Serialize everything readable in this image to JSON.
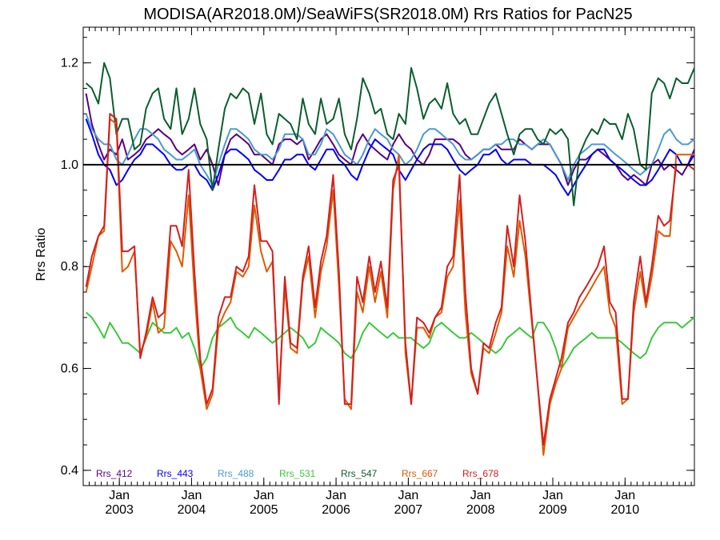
{
  "chart_data": {
    "type": "line",
    "title": "MODISA(AR2018.0M)/SeaWiFS(SR2018.0M)  Rrs Ratios for PacN25",
    "ylabel": "Rrs Ratio",
    "xlabel": "",
    "ylim": [
      0.37,
      1.27
    ],
    "yticks": [
      0.4,
      0.6,
      0.8,
      1.0,
      1.2
    ],
    "ytick_labels": [
      "0.4",
      "0.6",
      "0.8",
      "1.0",
      "1.2"
    ],
    "xlim": [
      2002.5,
      2010.96
    ],
    "xticks": [
      2003.0,
      2004.0,
      2005.0,
      2006.0,
      2007.0,
      2008.0,
      2009.0,
      2010.0
    ],
    "xtick_labels": [
      {
        "top": "Jan",
        "bottom": "2003"
      },
      {
        "top": "Jan",
        "bottom": "2004"
      },
      {
        "top": "Jan",
        "bottom": "2005"
      },
      {
        "top": "Jan",
        "bottom": "2006"
      },
      {
        "top": "Jan",
        "bottom": "2007"
      },
      {
        "top": "Jan",
        "bottom": "2008"
      },
      {
        "top": "Jan",
        "bottom": "2009"
      },
      {
        "top": "Jan",
        "bottom": "2010"
      }
    ],
    "reference_line": 1.0,
    "grid": false,
    "legend_position": "bottom-left",
    "x": [
      2002.54,
      2002.62,
      2002.71,
      2002.79,
      2002.87,
      2002.96,
      2003.04,
      2003.12,
      2003.21,
      2003.29,
      2003.37,
      2003.46,
      2003.54,
      2003.62,
      2003.71,
      2003.79,
      2003.87,
      2003.96,
      2004.04,
      2004.12,
      2004.21,
      2004.29,
      2004.37,
      2004.46,
      2004.54,
      2004.62,
      2004.71,
      2004.79,
      2004.87,
      2004.96,
      2005.04,
      2005.12,
      2005.21,
      2005.29,
      2005.37,
      2005.46,
      2005.54,
      2005.62,
      2005.71,
      2005.79,
      2005.87,
      2005.96,
      2006.04,
      2006.12,
      2006.21,
      2006.29,
      2006.37,
      2006.46,
      2006.54,
      2006.62,
      2006.71,
      2006.79,
      2006.87,
      2006.96,
      2007.04,
      2007.12,
      2007.21,
      2007.29,
      2007.37,
      2007.46,
      2007.54,
      2007.62,
      2007.71,
      2007.79,
      2007.87,
      2007.96,
      2008.04,
      2008.12,
      2008.21,
      2008.29,
      2008.37,
      2008.46,
      2008.54,
      2008.62,
      2008.71,
      2008.79,
      2008.87,
      2008.96,
      2009.04,
      2009.12,
      2009.21,
      2009.29,
      2009.37,
      2009.46,
      2009.54,
      2009.62,
      2009.71,
      2009.79,
      2009.87,
      2009.96,
      2010.04,
      2010.12,
      2010.21,
      2010.29,
      2010.37,
      2010.46,
      2010.54,
      2010.62,
      2010.71,
      2010.79,
      2010.87,
      2010.96
    ],
    "series": [
      {
        "name": "Rrs_412",
        "color": "#5a0080",
        "values": [
          1.14,
          1.08,
          1.04,
          1.01,
          1.03,
          1.02,
          1.05,
          1.01,
          1.02,
          1.03,
          1.05,
          1.06,
          1.07,
          1.06,
          1.05,
          1.03,
          1.02,
          1.03,
          1.04,
          1.01,
          1.03,
          1.0,
          0.96,
          1.02,
          1.05,
          1.06,
          1.05,
          1.04,
          1.02,
          1.02,
          1.01,
          1.0,
          1.04,
          1.05,
          1.05,
          1.04,
          1.05,
          1.01,
          1.03,
          1.05,
          1.06,
          1.04,
          1.02,
          1.01,
          1.0,
          1.04,
          1.06,
          1.04,
          1.03,
          1.02,
          1.01,
          1.04,
          1.06,
          1.04,
          1.03,
          1.01,
          1.0,
          1.02,
          1.05,
          1.05,
          1.05,
          1.05,
          1.04,
          1.02,
          1.01,
          1.02,
          1.03,
          1.03,
          1.04,
          1.03,
          1.03,
          1.03,
          1.05,
          1.04,
          1.03,
          1.04,
          1.04,
          1.04,
          1.02,
          1.0,
          0.96,
          0.99,
          1.01,
          1.01,
          1.02,
          1.03,
          1.02,
          1.01,
          1.0,
          0.98,
          0.97,
          0.98,
          0.97,
          0.96,
          1.0,
          1.01,
          0.99,
          1.0,
          0.99,
          0.98,
          1.0,
          1.03
        ]
      },
      {
        "name": "Rrs_443",
        "color": "#0000ff",
        "values": [
          1.09,
          1.06,
          1.02,
          1.0,
          0.99,
          0.96,
          0.97,
          0.99,
          1.01,
          1.02,
          1.04,
          1.04,
          1.03,
          1.02,
          1.0,
          0.99,
          0.99,
          1.0,
          1.0,
          0.98,
          0.97,
          0.95,
          0.98,
          1.02,
          1.03,
          1.03,
          1.02,
          1.01,
          0.99,
          0.98,
          0.97,
          0.97,
          0.99,
          1.01,
          1.01,
          1.02,
          1.02,
          1.0,
          0.99,
          1.01,
          1.03,
          1.03,
          1.01,
          1.0,
          0.98,
          0.97,
          1.0,
          1.03,
          1.05,
          1.04,
          1.03,
          1.02,
          0.99,
          0.97,
          0.99,
          1.01,
          1.03,
          1.04,
          1.04,
          1.04,
          1.03,
          1.01,
          0.99,
          0.98,
          0.99,
          1.0,
          1.02,
          1.02,
          1.03,
          1.01,
          1.0,
          1.01,
          1.01,
          1.01,
          1.0,
          1.0,
          1.0,
          0.99,
          0.98,
          0.96,
          0.94,
          0.96,
          0.98,
          1.0,
          1.02,
          1.03,
          1.03,
          1.01,
          1.0,
          0.99,
          0.98,
          0.97,
          0.96,
          0.96,
          0.97,
          0.99,
          1.01,
          1.03,
          1.02,
          1.0,
          1.0,
          1.02
        ]
      },
      {
        "name": "Rrs_488",
        "color": "#4a9ad2",
        "values": [
          1.1,
          1.07,
          1.05,
          1.04,
          1.04,
          1.01,
          1.0,
          1.02,
          1.05,
          1.07,
          1.07,
          1.06,
          1.05,
          1.03,
          1.02,
          1.01,
          1.01,
          1.02,
          1.03,
          1.0,
          0.98,
          0.96,
          1.0,
          1.04,
          1.07,
          1.07,
          1.06,
          1.05,
          1.03,
          1.02,
          1.02,
          1.01,
          1.03,
          1.06,
          1.06,
          1.06,
          1.05,
          1.02,
          1.02,
          1.04,
          1.07,
          1.06,
          1.04,
          1.02,
          1.01,
          1.0,
          1.02,
          1.05,
          1.07,
          1.06,
          1.05,
          1.03,
          1.02,
          1.0,
          1.01,
          1.03,
          1.06,
          1.07,
          1.07,
          1.06,
          1.05,
          1.04,
          1.02,
          1.01,
          1.01,
          1.02,
          1.03,
          1.03,
          1.04,
          1.04,
          1.05,
          1.05,
          1.04,
          1.04,
          1.03,
          1.04,
          1.05,
          1.04,
          1.02,
          1.0,
          0.97,
          1.0,
          1.02,
          1.03,
          1.04,
          1.04,
          1.04,
          1.03,
          1.02,
          1.01,
          1.0,
          0.99,
          0.98,
          0.99,
          1.0,
          1.03,
          1.06,
          1.07,
          1.05,
          1.04,
          1.04,
          1.05
        ]
      },
      {
        "name": "Rrs_531",
        "color": "#3cc83c",
        "values": [
          0.71,
          0.7,
          0.68,
          0.66,
          0.69,
          0.67,
          0.65,
          0.65,
          0.64,
          0.63,
          0.66,
          0.69,
          0.68,
          0.67,
          0.67,
          0.68,
          0.66,
          0.67,
          0.64,
          0.6,
          0.62,
          0.66,
          0.68,
          0.69,
          0.7,
          0.68,
          0.67,
          0.66,
          0.68,
          0.67,
          0.66,
          0.65,
          0.66,
          0.67,
          0.68,
          0.67,
          0.66,
          0.64,
          0.65,
          0.68,
          0.67,
          0.66,
          0.65,
          0.63,
          0.62,
          0.64,
          0.67,
          0.69,
          0.68,
          0.67,
          0.66,
          0.67,
          0.66,
          0.66,
          0.66,
          0.65,
          0.64,
          0.65,
          0.68,
          0.69,
          0.68,
          0.67,
          0.66,
          0.66,
          0.67,
          0.66,
          0.65,
          0.64,
          0.63,
          0.64,
          0.66,
          0.67,
          0.68,
          0.67,
          0.66,
          0.69,
          0.69,
          0.67,
          0.64,
          0.6,
          0.62,
          0.64,
          0.65,
          0.66,
          0.67,
          0.66,
          0.66,
          0.66,
          0.66,
          0.65,
          0.64,
          0.63,
          0.62,
          0.63,
          0.66,
          0.68,
          0.69,
          0.69,
          0.69,
          0.68,
          0.69,
          0.7
        ]
      },
      {
        "name": "Rrs_547",
        "color": "#0b5e2e",
        "values": [
          1.16,
          1.15,
          1.12,
          1.2,
          1.17,
          1.06,
          1.09,
          1.09,
          1.03,
          1.04,
          1.11,
          1.14,
          1.15,
          1.09,
          1.07,
          1.15,
          1.06,
          1.09,
          1.15,
          1.08,
          1.05,
          0.95,
          1.03,
          1.11,
          1.14,
          1.13,
          1.15,
          1.14,
          1.08,
          1.14,
          1.06,
          1.04,
          1.1,
          1.09,
          1.08,
          1.05,
          1.13,
          1.08,
          1.06,
          1.13,
          1.08,
          1.09,
          1.13,
          1.06,
          1.03,
          1.09,
          1.17,
          1.14,
          1.1,
          1.11,
          1.06,
          1.05,
          1.1,
          1.08,
          1.19,
          1.15,
          1.09,
          1.12,
          1.13,
          1.11,
          1.16,
          1.1,
          1.08,
          1.09,
          1.06,
          1.06,
          1.09,
          1.12,
          1.14,
          1.1,
          1.06,
          1.02,
          1.06,
          1.07,
          1.07,
          1.05,
          1.04,
          1.07,
          1.06,
          1.07,
          1.05,
          0.92,
          1.02,
          1.05,
          1.07,
          1.06,
          1.09,
          1.08,
          1.08,
          1.05,
          1.1,
          1.07,
          1.0,
          0.99,
          1.14,
          1.17,
          1.16,
          1.13,
          1.17,
          1.16,
          1.16,
          1.19
        ]
      },
      {
        "name": "Rrs_667",
        "color": "#e05a00",
        "values": [
          0.75,
          0.8,
          0.86,
          0.87,
          1.09,
          1.08,
          0.79,
          0.8,
          0.83,
          0.63,
          0.66,
          0.73,
          0.67,
          0.68,
          0.85,
          0.83,
          0.8,
          0.94,
          0.75,
          0.6,
          0.52,
          0.55,
          0.68,
          0.71,
          0.73,
          0.79,
          0.78,
          0.8,
          0.92,
          0.83,
          0.79,
          0.81,
          0.55,
          0.76,
          0.64,
          0.63,
          0.77,
          0.82,
          0.7,
          0.79,
          0.84,
          0.95,
          0.76,
          0.54,
          0.52,
          0.75,
          0.71,
          0.8,
          0.73,
          0.79,
          0.7,
          0.95,
          1.02,
          0.63,
          0.53,
          0.68,
          0.68,
          0.66,
          0.7,
          0.71,
          0.78,
          0.8,
          0.93,
          0.71,
          0.59,
          0.55,
          0.64,
          0.63,
          0.67,
          0.71,
          0.84,
          0.78,
          0.89,
          0.82,
          0.69,
          0.57,
          0.43,
          0.53,
          0.57,
          0.6,
          0.68,
          0.7,
          0.72,
          0.74,
          0.76,
          0.78,
          0.8,
          0.71,
          0.68,
          0.53,
          0.54,
          0.71,
          0.79,
          0.72,
          0.78,
          0.87,
          0.86,
          0.86,
          1.02,
          1.02,
          1.02,
          1.02
        ]
      },
      {
        "name": "Rrs_678",
        "color": "#d42020",
        "values": [
          0.76,
          0.82,
          0.86,
          0.88,
          1.1,
          1.09,
          0.83,
          0.83,
          0.84,
          0.62,
          0.67,
          0.74,
          0.7,
          0.71,
          0.88,
          0.88,
          0.84,
          0.99,
          0.79,
          0.62,
          0.53,
          0.56,
          0.7,
          0.74,
          0.74,
          0.8,
          0.79,
          0.82,
          0.96,
          0.85,
          0.85,
          0.83,
          0.53,
          0.78,
          0.65,
          0.64,
          0.78,
          0.84,
          0.72,
          0.81,
          0.86,
          0.98,
          0.79,
          0.53,
          0.53,
          0.78,
          0.73,
          0.82,
          0.75,
          0.81,
          0.72,
          0.97,
          1.0,
          0.65,
          0.53,
          0.7,
          0.69,
          0.67,
          0.7,
          0.72,
          0.8,
          0.82,
          0.98,
          0.75,
          0.6,
          0.55,
          0.65,
          0.64,
          0.69,
          0.72,
          0.88,
          0.8,
          0.94,
          0.85,
          0.7,
          0.57,
          0.45,
          0.54,
          0.58,
          0.62,
          0.69,
          0.71,
          0.74,
          0.76,
          0.78,
          0.8,
          0.84,
          0.73,
          0.71,
          0.54,
          0.54,
          0.73,
          0.82,
          0.73,
          0.8,
          0.9,
          0.88,
          0.89,
          1.0,
          1.0,
          1.0,
          0.99
        ]
      }
    ]
  }
}
